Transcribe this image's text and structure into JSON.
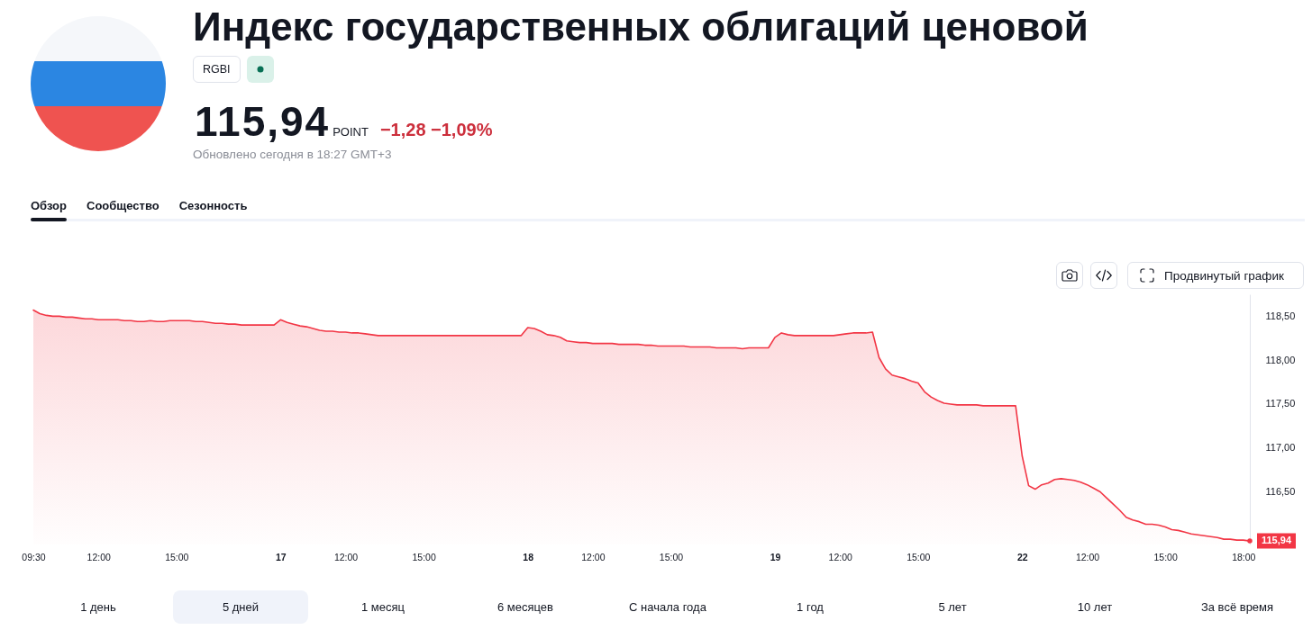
{
  "chart_data": {
    "type": "area",
    "title": "Индекс государственных облигаций ценовой",
    "subtitle": "Обновлено сегодня в 18:27 GMT+3",
    "categories": [
      "09:30",
      null,
      null,
      null,
      null,
      null,
      null,
      null,
      null,
      null,
      "12:00",
      null,
      null,
      null,
      null,
      null,
      null,
      null,
      null,
      null,
      null,
      null,
      "15:00",
      null,
      null,
      null,
      null,
      null,
      null,
      null,
      null,
      null,
      null,
      null,
      null,
      null,
      null,
      null,
      "17",
      null,
      null,
      null,
      null,
      null,
      null,
      null,
      null,
      null,
      "12:00",
      null,
      null,
      null,
      null,
      null,
      null,
      null,
      null,
      null,
      null,
      null,
      "15:00",
      null,
      null,
      null,
      null,
      null,
      null,
      null,
      null,
      null,
      null,
      null,
      null,
      null,
      null,
      null,
      "18",
      null,
      null,
      null,
      null,
      null,
      null,
      null,
      null,
      null,
      "12:00",
      null,
      null,
      null,
      null,
      null,
      null,
      null,
      null,
      null,
      null,
      null,
      "15:00",
      null,
      null,
      null,
      null,
      null,
      null,
      null,
      null,
      null,
      null,
      null,
      null,
      null,
      null,
      null,
      "19",
      null,
      null,
      null,
      null,
      null,
      null,
      null,
      null,
      null,
      "12:00",
      null,
      null,
      null,
      null,
      null,
      null,
      null,
      null,
      null,
      null,
      null,
      "15:00",
      null,
      null,
      null,
      null,
      null,
      null,
      null,
      null,
      null,
      null,
      null,
      null,
      null,
      null,
      null,
      "22",
      null,
      null,
      null,
      null,
      null,
      null,
      null,
      null,
      null,
      "12:00",
      null,
      null,
      null,
      null,
      null,
      null,
      null,
      null,
      null,
      null,
      null,
      "15:00",
      null,
      null,
      null,
      null,
      null,
      null,
      null,
      null,
      null,
      null,
      null,
      "18:00",
      null
    ],
    "values": [
      118.57,
      118.53,
      118.51,
      118.5,
      118.5,
      118.49,
      118.49,
      118.48,
      118.47,
      118.47,
      118.46,
      118.46,
      118.46,
      118.46,
      118.45,
      118.45,
      118.44,
      118.44,
      118.45,
      118.44,
      118.44,
      118.45,
      118.45,
      118.45,
      118.45,
      118.44,
      118.44,
      118.43,
      118.42,
      118.42,
      118.41,
      118.41,
      118.4,
      118.4,
      118.4,
      118.4,
      118.4,
      118.4,
      118.46,
      118.43,
      118.41,
      118.39,
      118.38,
      118.36,
      118.34,
      118.33,
      118.33,
      118.32,
      118.32,
      118.31,
      118.31,
      118.3,
      118.29,
      118.28,
      118.28,
      118.28,
      118.28,
      118.28,
      118.28,
      118.28,
      118.28,
      118.28,
      118.28,
      118.28,
      118.28,
      118.28,
      118.28,
      118.28,
      118.28,
      118.28,
      118.28,
      118.28,
      118.28,
      118.28,
      118.28,
      118.28,
      118.37,
      118.36,
      118.33,
      118.29,
      118.28,
      118.26,
      118.22,
      118.21,
      118.2,
      118.2,
      118.19,
      118.19,
      118.19,
      118.19,
      118.18,
      118.18,
      118.18,
      118.18,
      118.17,
      118.17,
      118.16,
      118.16,
      118.16,
      118.16,
      118.16,
      118.15,
      118.15,
      118.15,
      118.15,
      118.14,
      118.14,
      118.14,
      118.14,
      118.13,
      118.14,
      118.14,
      118.14,
      118.14,
      118.26,
      118.31,
      118.29,
      118.28,
      118.28,
      118.28,
      118.28,
      118.28,
      118.28,
      118.28,
      118.29,
      118.3,
      118.31,
      118.31,
      118.31,
      118.32,
      118.03,
      117.9,
      117.83,
      117.81,
      117.79,
      117.76,
      117.74,
      117.64,
      117.58,
      117.54,
      117.51,
      117.5,
      117.49,
      117.49,
      117.49,
      117.49,
      117.48,
      117.48,
      117.48,
      117.48,
      117.48,
      117.48,
      116.91,
      116.57,
      116.53,
      116.58,
      116.6,
      116.64,
      116.65,
      116.64,
      116.63,
      116.61,
      116.58,
      116.54,
      116.5,
      116.43,
      116.36,
      116.29,
      116.21,
      116.18,
      116.16,
      116.13,
      116.13,
      116.12,
      116.1,
      116.07,
      116.06,
      116.04,
      116.02,
      116.01,
      116,
      115.99,
      115.98,
      115.96,
      115.96,
      115.95,
      115.95,
      115.94
    ],
    "value_labels": [
      null,
      null,
      null,
      null,
      null,
      null,
      null,
      null,
      null,
      null,
      null,
      null,
      null,
      null,
      null,
      null,
      null,
      null,
      null,
      null,
      null,
      null,
      null,
      null,
      null,
      null,
      null,
      null,
      null,
      null,
      null,
      null,
      null,
      null,
      null,
      null,
      null,
      null,
      null,
      null,
      null,
      null,
      null,
      null,
      null,
      null,
      null,
      null,
      null,
      null,
      null,
      null,
      null,
      null,
      null,
      null,
      null,
      null,
      null,
      null,
      null,
      null,
      null,
      null,
      null,
      null,
      null,
      null,
      null,
      null,
      null,
      null,
      null,
      null,
      null,
      null,
      null,
      null,
      null,
      null,
      null,
      null,
      null,
      null,
      null,
      null,
      null,
      null,
      null,
      null,
      null,
      null,
      null,
      null,
      null,
      null,
      null,
      null,
      null,
      null,
      null,
      null,
      null,
      null,
      null,
      null,
      null,
      null,
      null,
      null,
      null,
      null,
      null,
      null,
      null,
      null,
      null,
      null,
      null,
      null,
      null,
      null,
      null,
      null,
      null,
      null,
      null,
      null,
      null,
      null,
      null,
      null,
      null,
      null,
      null,
      null,
      null,
      null,
      null,
      null,
      null,
      null,
      null,
      null,
      null,
      null,
      null,
      null,
      null,
      null,
      null,
      null,
      null,
      null,
      null,
      null,
      null,
      null,
      null,
      null,
      null,
      null,
      null,
      null,
      null,
      null,
      null,
      null,
      null,
      null,
      null,
      null,
      null,
      null,
      null,
      null,
      null,
      null,
      null,
      null,
      null,
      null,
      null,
      null,
      null,
      null,
      null,
      "115,94"
    ],
    "color": "#f23645",
    "ylim": [
      115.9,
      118.75
    ],
    "yticks": [
      {
        "value": 116.5,
        "label": "116,50"
      },
      {
        "value": 117,
        "label": "117,00"
      },
      {
        "value": 117.5,
        "label": "117,50"
      },
      {
        "value": 118,
        "label": "118,00"
      },
      {
        "value": 118.5,
        "label": "118,50"
      }
    ],
    "annotations": [
      "115,94",
      "POINT",
      "−1,28 −1,09%",
      "RGBI",
      "Обзор",
      "Сообщество",
      "Сезонность",
      "Продвинутый график",
      "1 день",
      "5 дней",
      "1 месяц",
      "6 месяцев",
      "С начала года",
      "1 год",
      "5 лет",
      "10 лет",
      "За всё время"
    ]
  }
}
